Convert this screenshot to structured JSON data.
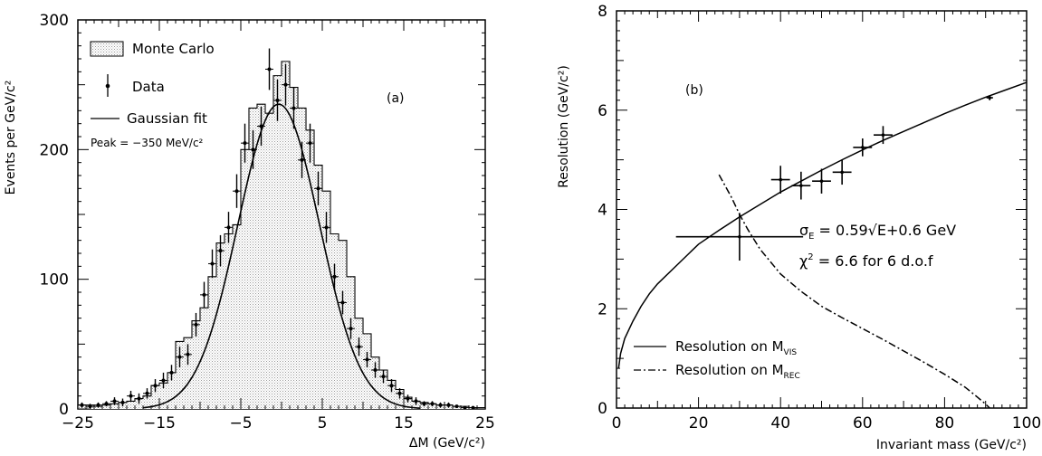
{
  "chart_data": [
    {
      "type": "histogram",
      "panel_label": "(a)",
      "xlabel": "ΔM (GeV/c²)",
      "ylabel": "Events per GeV/c²",
      "xlim": [
        -25,
        25
      ],
      "ylim": [
        0,
        300
      ],
      "x_ticks": [
        -25,
        -15,
        -5,
        5,
        15,
        25
      ],
      "x_tick_labels": [
        "−25",
        "−15",
        "−5",
        "5",
        "15",
        "25"
      ],
      "y_ticks": [
        0,
        100,
        200,
        300
      ],
      "y_tick_labels": [
        "0",
        "100",
        "200",
        "300"
      ],
      "legend": {
        "placement": "top-left",
        "monte_carlo": "Monte Carlo",
        "data": "Data",
        "gaussian_fit": "Gaussian fit"
      },
      "annotation": "Peak = −350 MeV/c²",
      "monte_carlo": {
        "name": "Monte Carlo",
        "bin_width": 1,
        "bin_low_edges": [
          -25,
          -24,
          -23,
          -22,
          -21,
          -20,
          -19,
          -18,
          -17,
          -16,
          -15,
          -14,
          -13,
          -12,
          -11,
          -10,
          -9,
          -8,
          -7,
          -6,
          -5,
          -4,
          -3,
          -2,
          -1,
          0,
          1,
          2,
          3,
          4,
          5,
          6,
          7,
          8,
          9,
          10,
          11,
          12,
          13,
          14,
          15,
          16,
          17,
          18,
          19,
          20,
          21,
          22,
          23,
          24
        ],
        "values": [
          3,
          3,
          2,
          3,
          4,
          5,
          6,
          8,
          10,
          18,
          20,
          28,
          52,
          55,
          68,
          78,
          102,
          128,
          135,
          142,
          200,
          232,
          235,
          228,
          257,
          268,
          248,
          232,
          215,
          188,
          168,
          135,
          130,
          102,
          70,
          58,
          40,
          30,
          22,
          15,
          9,
          6,
          5,
          4,
          3,
          3,
          2,
          2,
          1,
          1
        ]
      },
      "data_points": {
        "name": "Data",
        "x": [
          -24.5,
          -23.5,
          -22.5,
          -21.5,
          -20.5,
          -19.5,
          -18.5,
          -17.5,
          -16.5,
          -15.5,
          -14.5,
          -13.5,
          -12.5,
          -11.5,
          -10.5,
          -9.5,
          -8.5,
          -7.5,
          -6.5,
          -5.5,
          -4.5,
          -3.5,
          -2.5,
          -1.5,
          -0.5,
          0.5,
          1.5,
          2.5,
          3.5,
          4.5,
          5.5,
          6.5,
          7.5,
          8.5,
          9.5,
          10.5,
          11.5,
          12.5,
          13.5,
          14.5,
          15.5,
          16.5,
          17.5,
          18.5,
          19.5,
          20.5,
          21.5,
          22.5,
          23.5
        ],
        "y": [
          3,
          2,
          3,
          4,
          6,
          5,
          10,
          8,
          12,
          18,
          22,
          28,
          40,
          42,
          65,
          88,
          112,
          122,
          140,
          168,
          205,
          200,
          218,
          262,
          238,
          250,
          232,
          192,
          205,
          170,
          140,
          102,
          82,
          62,
          48,
          38,
          30,
          25,
          18,
          12,
          8,
          6,
          4,
          4,
          3,
          3,
          2,
          1,
          1
        ],
        "err": [
          2,
          2,
          2,
          2,
          3,
          3,
          4,
          4,
          4,
          5,
          6,
          6,
          8,
          8,
          9,
          10,
          11,
          12,
          12,
          13,
          15,
          15,
          15,
          16,
          16,
          16,
          16,
          14,
          15,
          13,
          12,
          10,
          9,
          8,
          7,
          6,
          6,
          5,
          5,
          4,
          3,
          3,
          2,
          2,
          2,
          2,
          1,
          1,
          1
        ]
      },
      "gaussian_fit": {
        "name": "Gaussian fit",
        "peak_x": -0.35,
        "amplitude": 235,
        "sigma": 5.0
      }
    },
    {
      "type": "scatter",
      "panel_label": "(b)",
      "xlabel": "Invariant mass (GeV/c²)",
      "ylabel": "Resolution (GeV/c²)",
      "xlim": [
        0,
        100
      ],
      "ylim": [
        0,
        8
      ],
      "x_ticks": [
        0,
        20,
        40,
        60,
        80,
        100
      ],
      "x_tick_labels": [
        "0",
        "20",
        "40",
        "60",
        "80",
        "100"
      ],
      "y_ticks": [
        0,
        2,
        4,
        6,
        8
      ],
      "y_tick_labels": [
        "0",
        "2",
        "4",
        "6",
        "8"
      ],
      "formula": "σ_E = 0.59√E+0.6 GeV",
      "formula_sigma": "σ",
      "formula_sub": "E",
      "formula_rest": " = 0.59√E+0.6 GeV",
      "chi2_chi": "χ",
      "chi2_sup": "2",
      "chi2_rest": " = 6.6 for 6 d.o.f",
      "legend": {
        "placement": "bottom-left",
        "vis_prefix": "Resolution on M",
        "vis_sub": "VIS",
        "rec_prefix": "Resolution on M",
        "rec_sub": "REC"
      },
      "series": [
        {
          "name": "Resolution on M_VIS",
          "style": "solid",
          "x": [
            0.5,
            1,
            2,
            4,
            6,
            8,
            10,
            15,
            20,
            25,
            30,
            35,
            40,
            45,
            50,
            55,
            60,
            65,
            70,
            75,
            80,
            85,
            90,
            95,
            100
          ],
          "y": [
            0.8,
            1.1,
            1.4,
            1.75,
            2.05,
            2.3,
            2.5,
            2.9,
            3.3,
            3.58,
            3.85,
            4.1,
            4.35,
            4.57,
            4.79,
            5.0,
            5.2,
            5.39,
            5.57,
            5.75,
            5.93,
            6.1,
            6.26,
            6.41,
            6.56
          ]
        },
        {
          "name": "Resolution on M_REC",
          "style": "dash-dot",
          "x": [
            25,
            28,
            30,
            32,
            35,
            40,
            45,
            50,
            55,
            60,
            65,
            70,
            75,
            80,
            85,
            88,
            90,
            91
          ],
          "y": [
            4.7,
            4.25,
            3.9,
            3.6,
            3.2,
            2.7,
            2.35,
            2.05,
            1.82,
            1.6,
            1.38,
            1.15,
            0.92,
            0.68,
            0.42,
            0.22,
            0.08,
            0.0
          ]
        }
      ],
      "data_points": {
        "x": [
          30,
          40,
          45,
          50,
          55,
          60,
          65,
          91
        ],
        "y": [
          3.45,
          4.6,
          4.48,
          4.57,
          4.75,
          5.25,
          5.5,
          6.25
        ],
        "xerr": [
          15.5,
          2.3,
          2.3,
          2.3,
          2.3,
          2.3,
          2.3,
          0.8
        ],
        "yerr": [
          0.48,
          0.28,
          0.28,
          0.25,
          0.25,
          0.18,
          0.18,
          0.05
        ]
      }
    }
  ]
}
